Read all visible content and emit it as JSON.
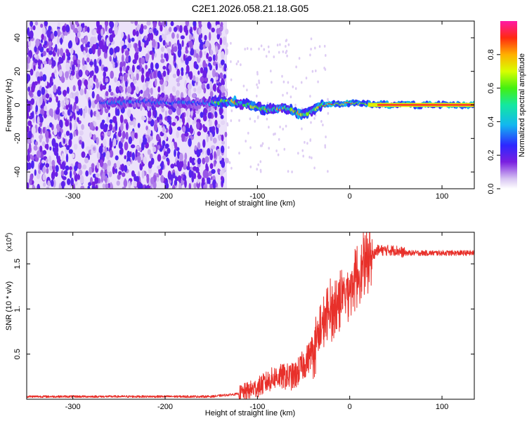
{
  "title": "C2E1.2026.058.21.18.G05",
  "chart_data": [
    {
      "type": "heatmap",
      "name": "spectrogram",
      "xlabel": "Height of straight line (km)",
      "ylabel": "Frequency (Hz)",
      "xlim": [
        -350,
        135
      ],
      "ylim": [
        -50,
        50
      ],
      "xticks": [
        -300,
        -200,
        -100,
        0,
        100
      ],
      "yticks": [
        -40,
        -20,
        0,
        20,
        40
      ],
      "noise_region_x": [
        -350,
        -133
      ],
      "signal_track": [
        {
          "x": -270,
          "y": 1
        },
        {
          "x": -220,
          "y": 2
        },
        {
          "x": -160,
          "y": 1
        },
        {
          "x": -130,
          "y": 2
        },
        {
          "x": -110,
          "y": 0
        },
        {
          "x": -90,
          "y": -3
        },
        {
          "x": -70,
          "y": -2
        },
        {
          "x": -50,
          "y": -6
        },
        {
          "x": -40,
          "y": -3
        },
        {
          "x": -30,
          "y": 0
        },
        {
          "x": 0,
          "y": 1
        },
        {
          "x": 50,
          "y": 0
        },
        {
          "x": 135,
          "y": 0
        }
      ],
      "colorbar": {
        "label": "Normalized spectral amplitude",
        "range": [
          0.0,
          1.0
        ],
        "ticks": [
          0.0,
          0.2,
          0.4,
          0.6,
          0.8
        ]
      }
    },
    {
      "type": "line",
      "name": "snr",
      "xlabel": "Height of straight line (km)",
      "ylabel": "SNR (10 * v/v)",
      "scale_label": "(x10",
      "scale_exp": "4",
      "scale_close": ")",
      "xlim": [
        -350,
        135
      ],
      "ylim": [
        0,
        1.85
      ],
      "xticks": [
        -300,
        -200,
        -100,
        0,
        100
      ],
      "yticks": [
        0.5,
        1.0,
        1.5
      ],
      "ytick_labels": [
        "0.5",
        "1.",
        "1.5"
      ],
      "color": "#e8302a",
      "profile": [
        {
          "x": -350,
          "y": 0.03
        },
        {
          "x": -150,
          "y": 0.03
        },
        {
          "x": -120,
          "y": 0.06
        },
        {
          "x": -100,
          "y": 0.13
        },
        {
          "x": -80,
          "y": 0.25
        },
        {
          "x": -60,
          "y": 0.25
        },
        {
          "x": -45,
          "y": 0.45
        },
        {
          "x": -30,
          "y": 0.8
        },
        {
          "x": -20,
          "y": 1.0
        },
        {
          "x": -10,
          "y": 1.1
        },
        {
          "x": 0,
          "y": 1.25
        },
        {
          "x": 10,
          "y": 1.4
        },
        {
          "x": 20,
          "y": 1.55
        },
        {
          "x": 30,
          "y": 1.65
        },
        {
          "x": 50,
          "y": 1.65
        },
        {
          "x": 60,
          "y": 1.62
        },
        {
          "x": 135,
          "y": 1.62
        }
      ]
    }
  ]
}
